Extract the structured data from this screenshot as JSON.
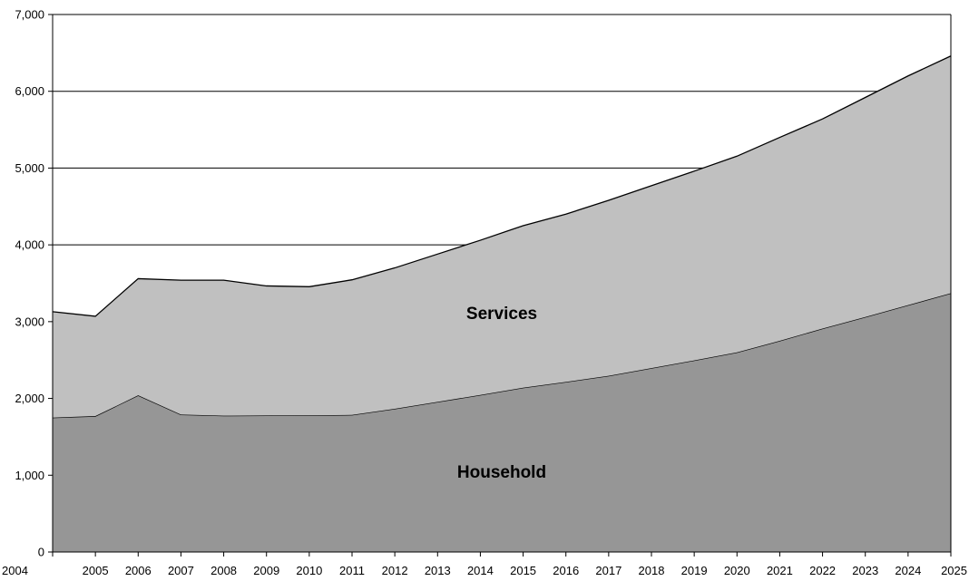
{
  "chart_data": {
    "type": "area",
    "stacked": true,
    "x": [
      2004,
      2005,
      2006,
      2007,
      2008,
      2009,
      2010,
      2011,
      2012,
      2013,
      2014,
      2015,
      2016,
      2017,
      2018,
      2019,
      2020,
      2021,
      2022,
      2023,
      2024,
      2025
    ],
    "series": [
      {
        "name": "Household",
        "color": "#969696",
        "values": [
          1750,
          1770,
          2040,
          1790,
          1775,
          1778,
          1780,
          1785,
          1865,
          1955,
          2045,
          2140,
          2215,
          2295,
          2395,
          2495,
          2600,
          2750,
          2910,
          3060,
          3215,
          3370
        ]
      },
      {
        "name": "Services",
        "color": "#c0c0c0",
        "values": [
          1380,
          1300,
          1520,
          1750,
          1765,
          1687,
          1675,
          1760,
          1835,
          1925,
          2015,
          2110,
          2185,
          2285,
          2375,
          2465,
          2555,
          2650,
          2730,
          2860,
          2985,
          3090
        ]
      }
    ],
    "ylim": [
      0,
      7000
    ],
    "yticks": [
      0,
      1000,
      2000,
      3000,
      4000,
      5000,
      6000,
      7000
    ],
    "ytick_labels": [
      "0",
      "1,000",
      "2,000",
      "3,000",
      "4,000",
      "5,000",
      "6,000",
      "7,000"
    ],
    "xtick_labels": [
      "2004",
      "2005",
      "2006",
      "2007",
      "2008",
      "2009",
      "2010",
      "2011",
      "2012",
      "2013",
      "2014",
      "2015",
      "2016",
      "2017",
      "2018",
      "2019",
      "2020",
      "2021",
      "2022",
      "2023",
      "2024",
      "2025"
    ],
    "grid": "horizontal",
    "legend": "none",
    "labels": {
      "household": "Household",
      "services": "Services"
    }
  }
}
